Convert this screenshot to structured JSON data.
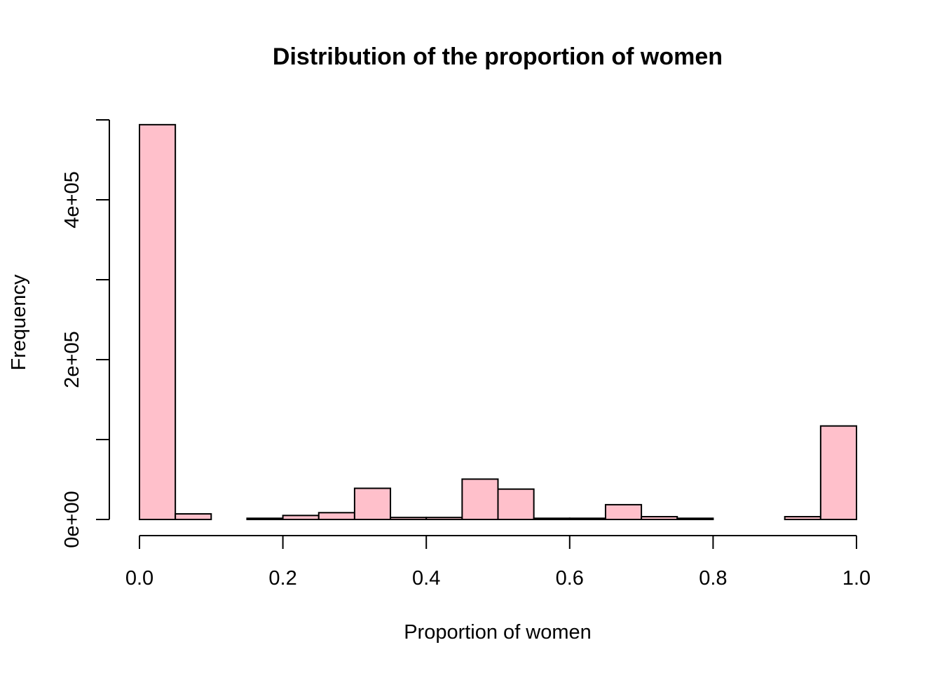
{
  "chart_data": {
    "type": "bar",
    "title": "Distribution of the proportion of women",
    "xlabel": "Proportion of women",
    "ylabel": "Frequency",
    "bar_color": "#FFC0CB",
    "bin_edges": [
      0.0,
      0.05,
      0.1,
      0.15,
      0.2,
      0.25,
      0.3,
      0.35,
      0.4,
      0.45,
      0.5,
      0.55,
      0.6,
      0.65,
      0.7,
      0.75,
      0.8,
      0.85,
      0.9,
      0.95,
      1.0
    ],
    "values": [
      494000,
      7000,
      0,
      1500,
      5000,
      8500,
      39000,
      2500,
      2500,
      50500,
      38000,
      1500,
      1500,
      18500,
      3500,
      1500,
      0,
      0,
      3500,
      117000
    ],
    "xlim": [
      0,
      1
    ],
    "ylim": [
      0,
      500000
    ],
    "x_ticks": [
      0.0,
      0.2,
      0.4,
      0.6,
      0.8,
      1.0
    ],
    "x_tick_labels": [
      "0.0",
      "0.2",
      "0.4",
      "0.6",
      "0.8",
      "1.0"
    ],
    "y_ticks": [
      0,
      100000,
      200000,
      300000,
      400000,
      500000
    ],
    "y_tick_labels": [
      "0e+00",
      "",
      "2e+05",
      "",
      "4e+05",
      ""
    ],
    "grid": false,
    "legend": "none"
  }
}
